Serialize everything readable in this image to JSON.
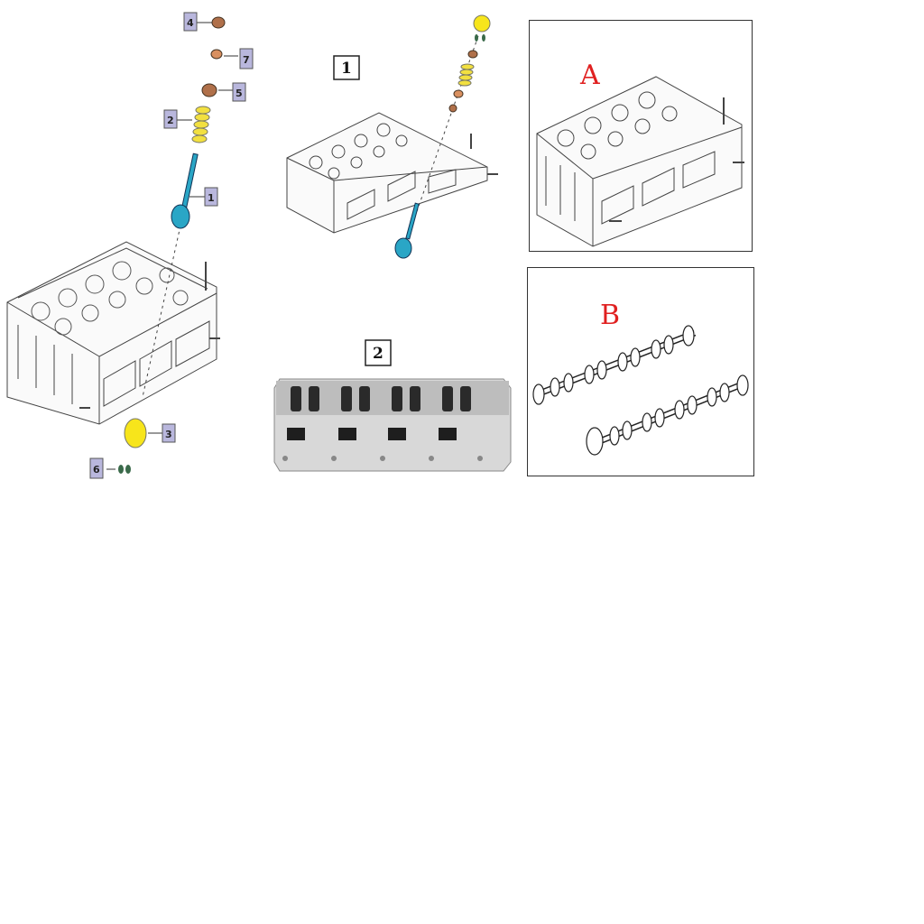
{
  "left_panel": {
    "callouts": [
      {
        "id": "valve",
        "label": "1",
        "color": "#2aa6c6"
      },
      {
        "id": "spring",
        "label": "2",
        "color": "#f2e040"
      },
      {
        "id": "lifter",
        "label": "3",
        "color": "#f7e51b"
      },
      {
        "id": "seal",
        "label": "4",
        "color": "#b0704a"
      },
      {
        "id": "seat",
        "label": "5",
        "color": "#b0704a"
      },
      {
        "id": "keepers",
        "label": "6",
        "color": "#3a6a4a"
      },
      {
        "id": "retainer",
        "label": "7",
        "color": "#d99060"
      }
    ]
  },
  "middle_panel": {
    "diagram_label": "1",
    "photo_label": "2"
  },
  "panel_a": {
    "label": "A"
  },
  "panel_b": {
    "label": "B"
  },
  "colors": {
    "callout_bg": "#b9b7dd",
    "callout_border": "#555",
    "red_label": "#e02020",
    "line": "#333"
  }
}
